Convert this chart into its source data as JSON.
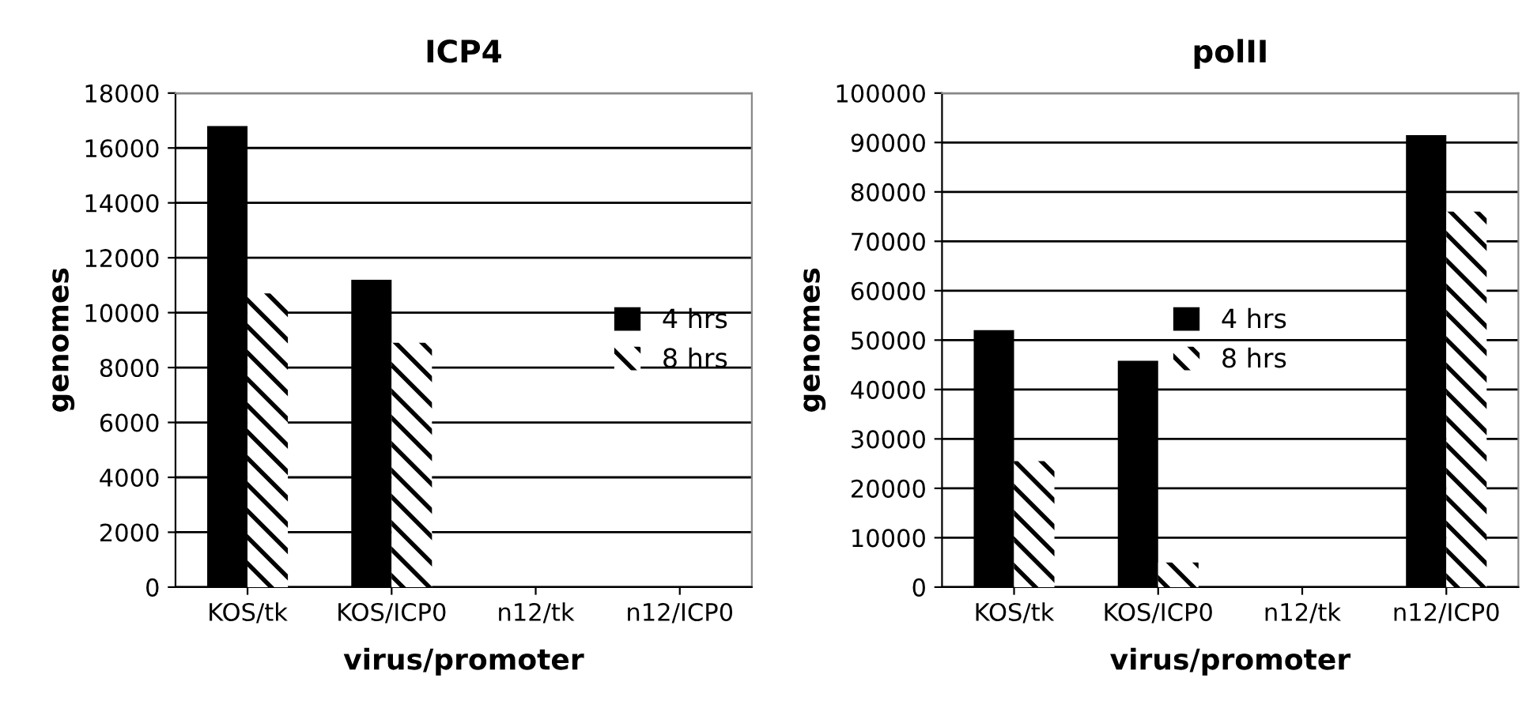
{
  "chart_data": [
    {
      "type": "bar",
      "title": "ICP4",
      "xlabel": "virus/promoter",
      "ylabel": "genomes",
      "categories": [
        "KOS/tk",
        "KOS/ICP0",
        "n12/tk",
        "n12/ICP0"
      ],
      "series": [
        {
          "name": "4 hrs",
          "color": "#000000",
          "values": [
            16800,
            11200,
            0,
            0
          ]
        },
        {
          "name": "8 hrs",
          "color": "#000000",
          "values": [
            10700,
            8900,
            0,
            0
          ]
        }
      ],
      "ylim": [
        0,
        18000
      ],
      "yticks": [
        0,
        2000,
        4000,
        6000,
        8000,
        10000,
        12000,
        14000,
        16000,
        18000
      ],
      "grid": "y",
      "legend": "right"
    },
    {
      "type": "bar",
      "title": "polII",
      "xlabel": "virus/promoter",
      "ylabel": "genomes",
      "categories": [
        "KOS/tk",
        "KOS/ICP0",
        "n12/tk",
        "n12/ICP0"
      ],
      "series": [
        {
          "name": "4 hrs",
          "color": "#000000",
          "values": [
            52000,
            45800,
            0,
            91500
          ]
        },
        {
          "name": "8 hrs",
          "color": "#000000",
          "values": [
            25500,
            5000,
            0,
            76000
          ]
        }
      ],
      "ylim": [
        0,
        100000
      ],
      "yticks": [
        0,
        10000,
        20000,
        30000,
        40000,
        50000,
        60000,
        70000,
        80000,
        90000,
        100000
      ],
      "grid": "y",
      "legend": "center"
    }
  ]
}
